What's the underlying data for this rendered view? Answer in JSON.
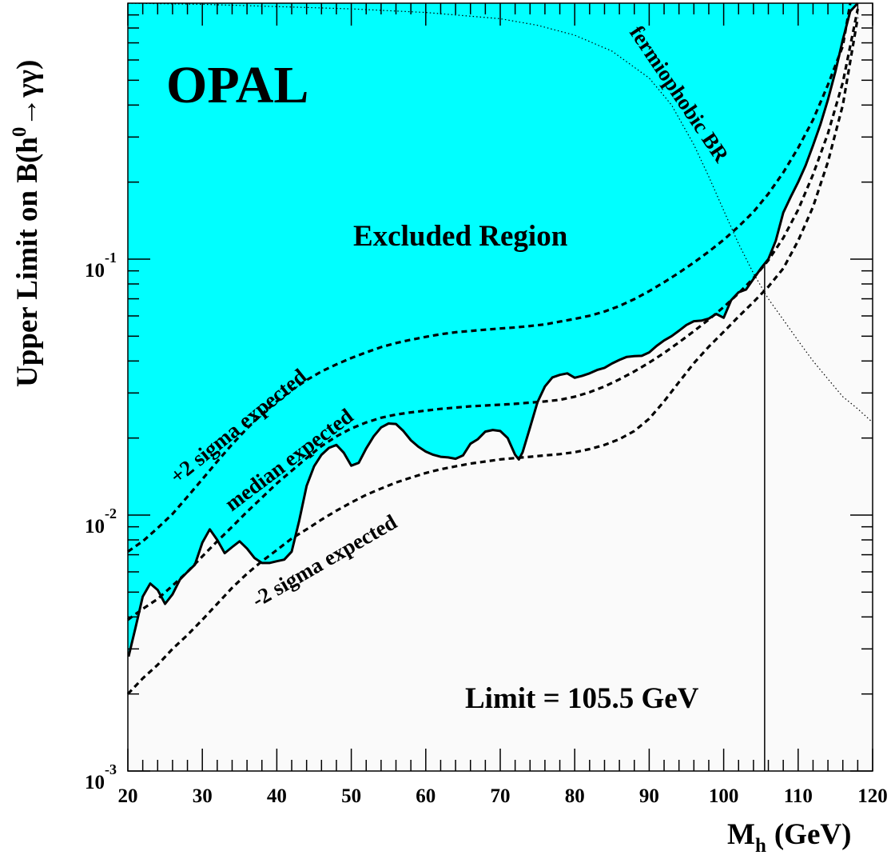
{
  "chart_data": {
    "type": "line",
    "experiment_label": "OPAL",
    "xlabel": "M",
    "xlabel_sub": "h",
    "xlabel_unit": "(GeV)",
    "ylabel_prefix": "Upper Limit on B(h",
    "ylabel_sup": "0",
    "ylabel_suffix": "→γγ)",
    "xlim": [
      20,
      120
    ],
    "ylim": [
      0.001,
      1
    ],
    "yscale": "log",
    "x_ticks": [
      "20",
      "30",
      "40",
      "50",
      "60",
      "70",
      "80",
      "90",
      "100",
      "110",
      "120"
    ],
    "y_ticks": [
      {
        "value": 0.001,
        "base": "10",
        "exp": "-3"
      },
      {
        "value": 0.01,
        "base": "10",
        "exp": "-2"
      },
      {
        "value": 0.1,
        "base": "10",
        "exp": "-1"
      }
    ],
    "region_label": "Excluded Region",
    "limit_text": "Limit = 105.5 GeV",
    "limit_mass": 105.5,
    "colors": {
      "excluded": "#00ffff",
      "allowed": "#fafafa",
      "curves": "#000000"
    },
    "annotations": {
      "plus2": "+2 sigma expected",
      "median": "median expected",
      "minus2": "-2 sigma expected",
      "fermiophobic": "fermiophobic BR"
    },
    "series": [
      {
        "key": "observed",
        "style": "solid",
        "x": [
          20.1,
          21,
          22,
          23,
          24,
          25,
          26,
          27,
          28,
          29,
          30,
          31,
          32,
          33,
          34,
          35,
          36,
          37,
          38,
          39,
          40,
          41,
          42,
          43,
          44,
          45,
          46,
          47,
          48,
          49,
          50,
          51,
          52,
          53,
          54,
          55,
          56,
          57,
          58,
          59,
          60,
          61,
          62,
          63,
          64,
          65,
          66,
          67,
          68,
          69,
          70,
          71,
          72,
          72.5,
          73,
          74,
          75,
          76,
          77,
          78,
          79,
          80,
          81,
          82,
          83,
          84,
          85,
          86,
          87,
          88,
          89,
          90,
          91,
          92,
          93,
          94,
          95,
          96,
          97,
          98,
          99,
          100,
          101,
          102,
          103,
          104,
          105,
          106,
          107,
          108,
          109,
          110,
          111,
          112,
          113,
          114,
          115,
          116,
          117,
          118
        ],
        "y": [
          0.0028,
          0.0036,
          0.0048,
          0.0054,
          0.0051,
          0.0045,
          0.0049,
          0.0056,
          0.006,
          0.0064,
          0.0078,
          0.0088,
          0.008,
          0.0071,
          0.0075,
          0.0079,
          0.0074,
          0.0068,
          0.0065,
          0.0065,
          0.0066,
          0.0067,
          0.0072,
          0.0095,
          0.013,
          0.0155,
          0.0172,
          0.0183,
          0.0188,
          0.0175,
          0.0156,
          0.016,
          0.0182,
          0.0203,
          0.022,
          0.0228,
          0.0227,
          0.0213,
          0.0196,
          0.0185,
          0.0177,
          0.0172,
          0.0169,
          0.0168,
          0.0166,
          0.0171,
          0.019,
          0.0198,
          0.0212,
          0.0215,
          0.0213,
          0.02,
          0.0172,
          0.0165,
          0.0176,
          0.022,
          0.0276,
          0.0318,
          0.0345,
          0.0353,
          0.0358,
          0.0344,
          0.035,
          0.0358,
          0.0369,
          0.0376,
          0.0391,
          0.0404,
          0.0415,
          0.0418,
          0.0419,
          0.0432,
          0.0458,
          0.0481,
          0.05,
          0.0525,
          0.0553,
          0.0572,
          0.0575,
          0.0586,
          0.0611,
          0.059,
          0.0691,
          0.0742,
          0.0761,
          0.0837,
          0.092,
          0.1,
          0.118,
          0.152,
          0.175,
          0.2,
          0.232,
          0.278,
          0.337,
          0.42,
          0.54,
          0.72,
          0.93,
          1.0
        ]
      },
      {
        "key": "plus2",
        "style": "dashed",
        "x": [
          20,
          22,
          24,
          26,
          28,
          30,
          32,
          34,
          36,
          38,
          40,
          42,
          44,
          46,
          48,
          50,
          52,
          54,
          56,
          58,
          60,
          62,
          64,
          66,
          68,
          70,
          72,
          74,
          76,
          78,
          80,
          82,
          84,
          86,
          88,
          90,
          92,
          94,
          96,
          98,
          100,
          102,
          104,
          106,
          108,
          110,
          112,
          114,
          116,
          117
        ],
        "y": [
          0.0072,
          0.0079,
          0.0089,
          0.0101,
          0.0118,
          0.0138,
          0.0162,
          0.0189,
          0.0218,
          0.0248,
          0.0278,
          0.0308,
          0.0337,
          0.0364,
          0.0388,
          0.0411,
          0.0432,
          0.0453,
          0.047,
          0.0484,
          0.0497,
          0.0509,
          0.0518,
          0.0524,
          0.053,
          0.0536,
          0.0541,
          0.0548,
          0.0556,
          0.057,
          0.0584,
          0.0601,
          0.0624,
          0.0656,
          0.0698,
          0.075,
          0.0812,
          0.0885,
          0.097,
          0.107,
          0.119,
          0.134,
          0.153,
          0.18,
          0.218,
          0.272,
          0.35,
          0.48,
          0.68,
          1.0
        ]
      },
      {
        "key": "median",
        "style": "dashed",
        "x": [
          20,
          22,
          24,
          26,
          28,
          30,
          32,
          34,
          36,
          38,
          40,
          42,
          44,
          46,
          48,
          50,
          52,
          54,
          56,
          58,
          60,
          62,
          64,
          66,
          68,
          70,
          72,
          74,
          76,
          78,
          80,
          82,
          84,
          86,
          88,
          90,
          92,
          94,
          96,
          98,
          100,
          102,
          104,
          106,
          108,
          110,
          112,
          114,
          116,
          118
        ],
        "y": [
          0.0039,
          0.0043,
          0.0047,
          0.0053,
          0.006,
          0.0069,
          0.0079,
          0.009,
          0.0103,
          0.0117,
          0.0133,
          0.0149,
          0.0167,
          0.0186,
          0.0203,
          0.0218,
          0.023,
          0.024,
          0.0247,
          0.0252,
          0.0256,
          0.026,
          0.0263,
          0.0266,
          0.0268,
          0.027,
          0.0272,
          0.0275,
          0.0278,
          0.0282,
          0.029,
          0.0302,
          0.0318,
          0.0339,
          0.0364,
          0.0394,
          0.043,
          0.0473,
          0.0523,
          0.0581,
          0.065,
          0.0735,
          0.0843,
          0.099,
          0.121,
          0.156,
          0.214,
          0.31,
          0.49,
          0.95
        ]
      },
      {
        "key": "minus2",
        "style": "dashed",
        "x": [
          20,
          22,
          24,
          26,
          28,
          30,
          32,
          34,
          36,
          38,
          40,
          42,
          44,
          46,
          48,
          50,
          52,
          54,
          56,
          58,
          60,
          62,
          64,
          66,
          68,
          70,
          72,
          74,
          76,
          78,
          80,
          82,
          84,
          86,
          88,
          90,
          92,
          94,
          96,
          98,
          100,
          102,
          104,
          106,
          108,
          110,
          112,
          114,
          116,
          118
        ],
        "y": [
          0.002,
          0.0023,
          0.0026,
          0.003,
          0.0034,
          0.0039,
          0.0045,
          0.0052,
          0.0059,
          0.0066,
          0.0073,
          0.0081,
          0.0088,
          0.0096,
          0.0104,
          0.0112,
          0.012,
          0.0127,
          0.0134,
          0.014,
          0.0146,
          0.0151,
          0.0155,
          0.0159,
          0.0162,
          0.0165,
          0.0167,
          0.0169,
          0.0171,
          0.0173,
          0.0176,
          0.0181,
          0.0188,
          0.0198,
          0.0213,
          0.0238,
          0.0278,
          0.0331,
          0.0392,
          0.0455,
          0.052,
          0.0596,
          0.068,
          0.078,
          0.092,
          0.118,
          0.16,
          0.24,
          0.4,
          0.88
        ]
      },
      {
        "key": "fermiophobic",
        "style": "dotted",
        "x": [
          20,
          30,
          40,
          50,
          60,
          70,
          75,
          80,
          85,
          90,
          93,
          96,
          98,
          100,
          102,
          104,
          106,
          108,
          110,
          112,
          114,
          116,
          118,
          120
        ],
        "y": [
          1.0,
          0.99,
          0.97,
          0.95,
          0.92,
          0.87,
          0.82,
          0.75,
          0.65,
          0.51,
          0.4,
          0.28,
          0.21,
          0.155,
          0.115,
          0.088,
          0.07,
          0.058,
          0.048,
          0.04,
          0.034,
          0.029,
          0.026,
          0.023
        ]
      }
    ]
  }
}
